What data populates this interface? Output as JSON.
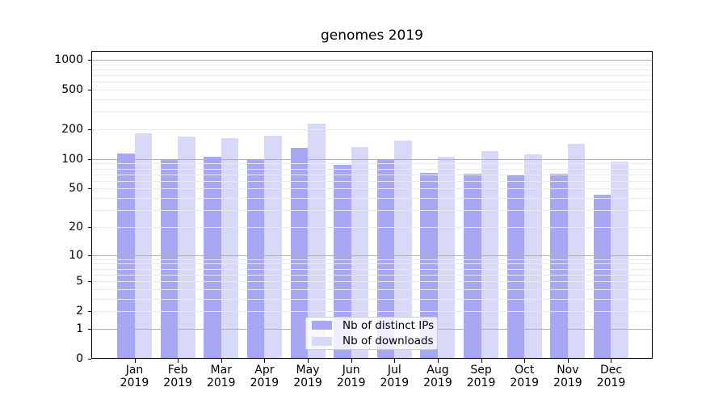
{
  "title": "genomes 2019",
  "chart_data": {
    "type": "bar",
    "title": "genomes 2019",
    "y_scale": "log1p",
    "grid": true,
    "legend_position": "lower center",
    "categories": [
      "Jan 2019",
      "Feb 2019",
      "Mar 2019",
      "Apr 2019",
      "May 2019",
      "Jun 2019",
      "Jul 2019",
      "Aug 2019",
      "Sep 2019",
      "Oct 2019",
      "Nov 2019",
      "Dec 2019"
    ],
    "series": [
      {
        "name": "Nb of distinct IPs",
        "color": "#a7a7f3",
        "values": [
          114,
          98,
          105,
          100,
          129,
          88,
          98,
          72,
          71,
          68,
          71,
          43
        ]
      },
      {
        "name": "Nb of downloads",
        "color": "#d8d8f8",
        "values": [
          182,
          168,
          164,
          173,
          230,
          132,
          154,
          106,
          121,
          111,
          143,
          94
        ]
      }
    ],
    "y_ticks": [
      0,
      1,
      2,
      5,
      10,
      20,
      50,
      100,
      200,
      500,
      1000
    ],
    "ylim": [
      0,
      1200
    ]
  },
  "colors": {
    "major_grid": "#b0b0b0",
    "minor_grid": "#e9e9ee",
    "axis": "#000000"
  }
}
